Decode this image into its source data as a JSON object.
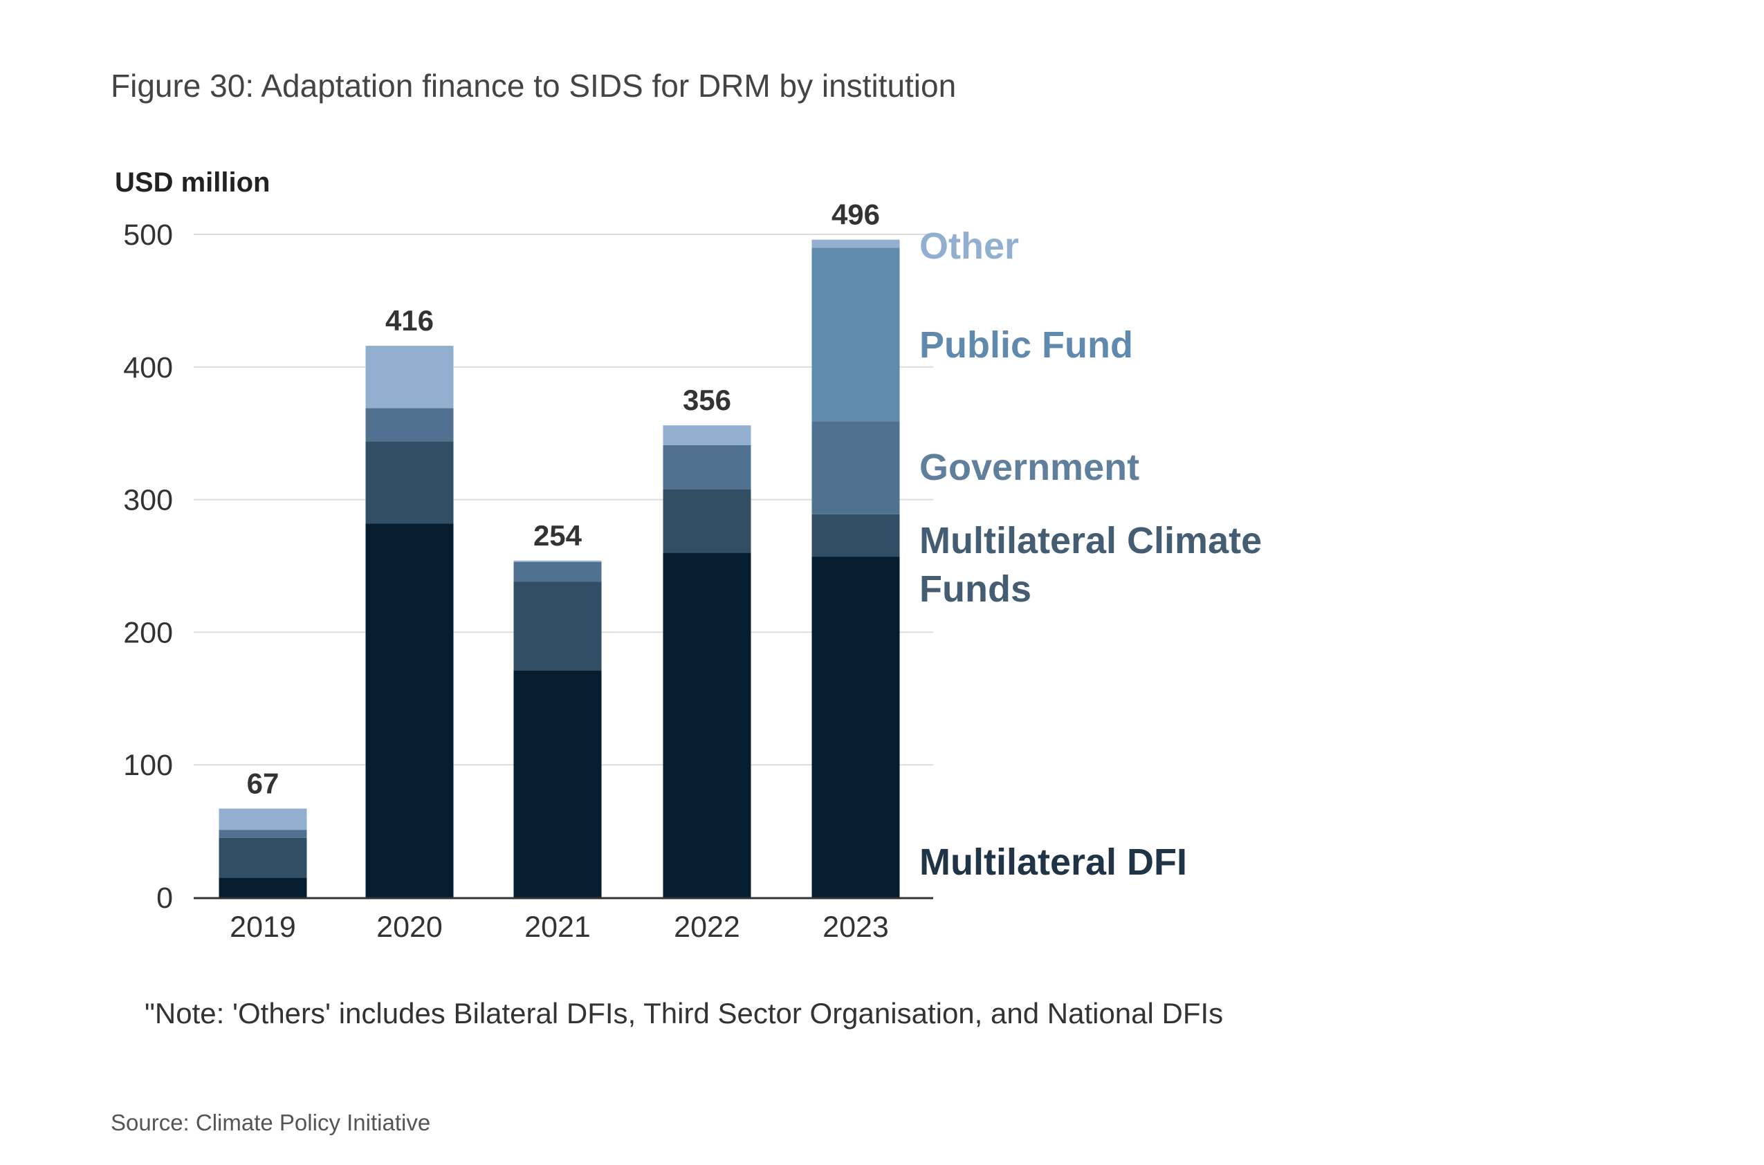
{
  "title": "Figure 30: Adaptation finance to SIDS for DRM by institution",
  "note": "\"Note: 'Others' includes Bilateral DFIs, Third Sector Organisation, and National DFIs",
  "source": "Source: Climate Policy Initiative",
  "chart_data": {
    "type": "bar",
    "stacked": true,
    "ylabel": "USD million",
    "ylim": [
      0,
      500
    ],
    "yticks": [
      0,
      100,
      200,
      300,
      400,
      500
    ],
    "grid": true,
    "legend_placement": "right",
    "categories": [
      "2019",
      "2020",
      "2021",
      "2022",
      "2023"
    ],
    "totals": [
      67,
      416,
      254,
      356,
      496
    ],
    "series": [
      {
        "name": "Multilateral DFI",
        "color": "#061c2f",
        "values": [
          15,
          282,
          171,
          260,
          257
        ]
      },
      {
        "name": "Multilateral Climate Funds",
        "color": "#324e64",
        "values": [
          30,
          62,
          67,
          48,
          32
        ]
      },
      {
        "name": "Government",
        "color": "#50718f",
        "values": [
          6,
          25,
          15,
          33,
          70
        ]
      },
      {
        "name": "Public Fund",
        "color": "#5f8aae",
        "values": [
          0,
          0,
          0,
          0,
          131
        ]
      },
      {
        "name": "Other",
        "color": "#92afcf",
        "values": [
          16,
          47,
          1,
          15,
          6
        ]
      }
    ],
    "legend_lines": {
      "Multilateral Climate Funds": [
        "Multilateral Climate",
        "Funds"
      ]
    }
  }
}
